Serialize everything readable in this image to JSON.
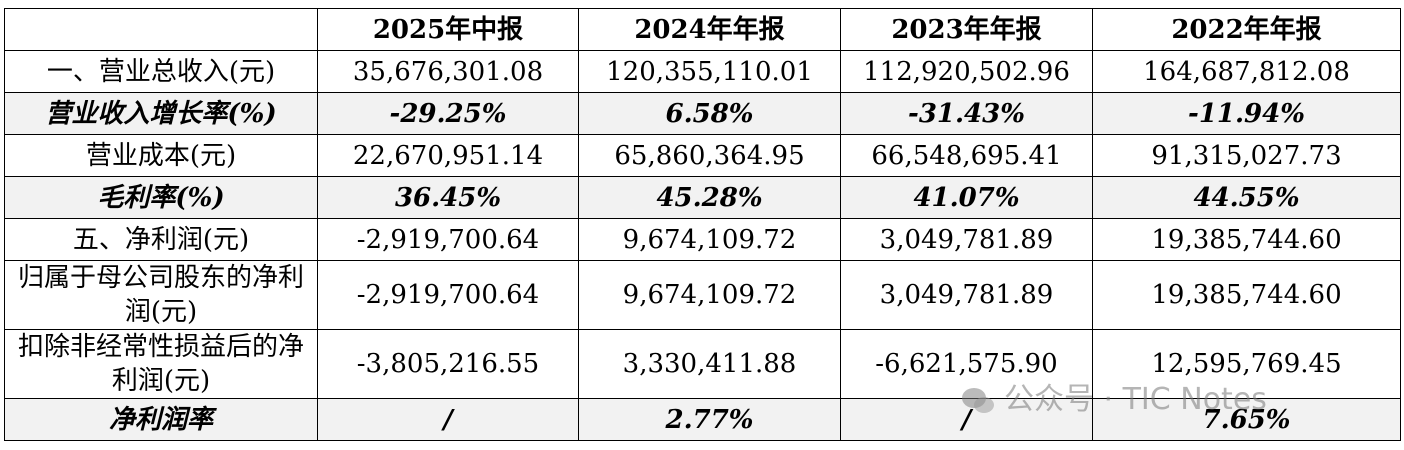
{
  "table": {
    "header": [
      "2025年中报",
      "2024年年报",
      "2023年年报",
      "2022年年报"
    ],
    "rows": [
      {
        "label": "一、营业总收入(元)",
        "values": [
          "35,676,301.08",
          "120,355,110.01",
          "112,920,502.96",
          "164,687,812.08"
        ],
        "highlight": false
      },
      {
        "label": "营业收入增长率(%)",
        "values": [
          "-29.25%",
          "6.58%",
          "-31.43%",
          "-11.94%"
        ],
        "highlight": true
      },
      {
        "label": "营业成本(元)",
        "values": [
          "22,670,951.14",
          "65,860,364.95",
          "66,548,695.41",
          "91,315,027.73"
        ],
        "highlight": false
      },
      {
        "label": "毛利率(%)",
        "values": [
          "36.45%",
          "45.28%",
          "41.07%",
          "44.55%"
        ],
        "highlight": true
      },
      {
        "label": "五、净利润(元)",
        "values": [
          "-2,919,700.64",
          "9,674,109.72",
          "3,049,781.89",
          "19,385,744.60"
        ],
        "highlight": false
      },
      {
        "label": "归属于母公司股东的净利润(元)",
        "values": [
          "-2,919,700.64",
          "9,674,109.72",
          "3,049,781.89",
          "19,385,744.60"
        ],
        "highlight": false
      },
      {
        "label": "扣除非经常性损益后的净利润(元)",
        "values": [
          "-3,805,216.55",
          "3,330,411.88",
          "-6,621,575.90",
          "12,595,769.45"
        ],
        "highlight": false
      },
      {
        "label": "净利润率",
        "values": [
          "/",
          "2.77%",
          "/",
          "7.65%"
        ],
        "highlight": true
      }
    ]
  },
  "watermark": "公众号 · TIC Notes"
}
